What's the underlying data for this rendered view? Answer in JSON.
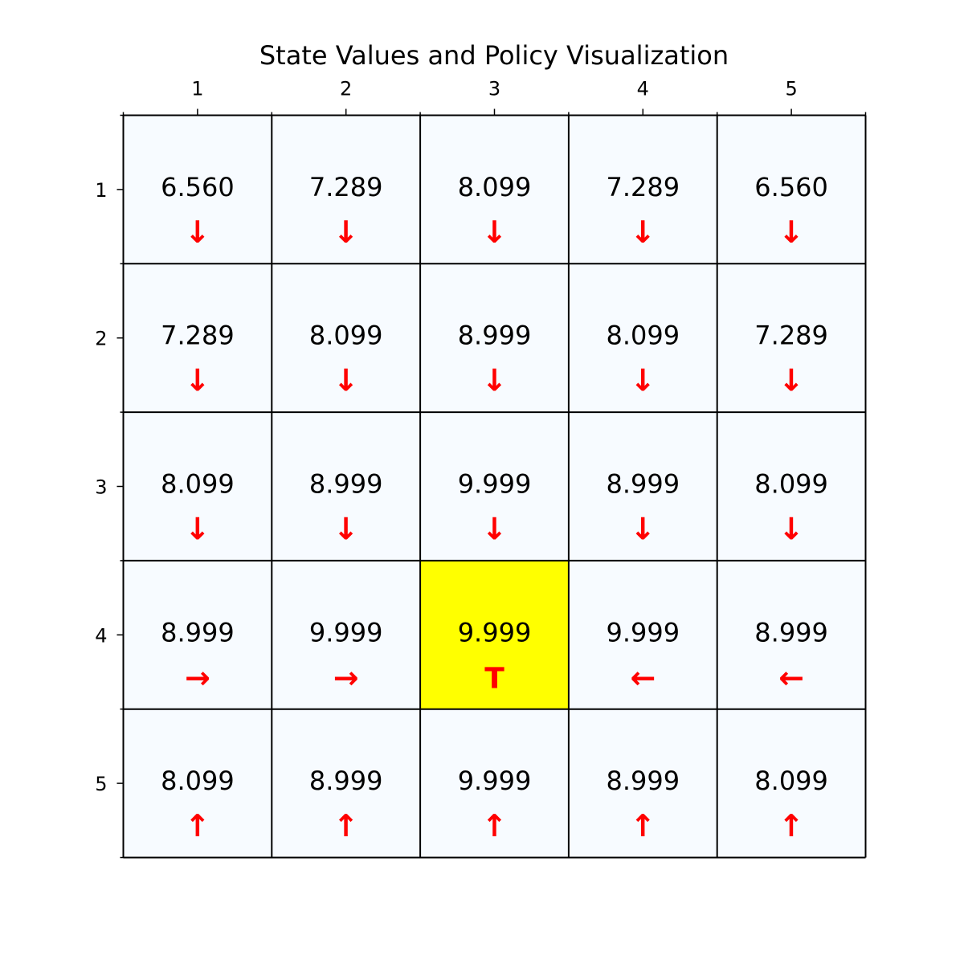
{
  "chart_data": {
    "type": "heatmap",
    "title": "State Values and Policy Visualization",
    "x_tick_labels": [
      "1",
      "2",
      "3",
      "4",
      "5"
    ],
    "y_tick_labels": [
      "1",
      "2",
      "3",
      "4",
      "5"
    ],
    "x_axis_position": "top",
    "grid": true,
    "values": [
      [
        "6.560",
        "7.289",
        "8.099",
        "7.289",
        "6.560"
      ],
      [
        "7.289",
        "8.099",
        "8.999",
        "8.099",
        "7.289"
      ],
      [
        "8.099",
        "8.999",
        "9.999",
        "8.999",
        "8.099"
      ],
      [
        "8.999",
        "9.999",
        "9.999",
        "9.999",
        "8.999"
      ],
      [
        "8.099",
        "8.999",
        "9.999",
        "8.999",
        "8.099"
      ]
    ],
    "policy": [
      [
        "↓",
        "↓",
        "↓",
        "↓",
        "↓"
      ],
      [
        "↓",
        "↓",
        "↓",
        "↓",
        "↓"
      ],
      [
        "↓",
        "↓",
        "↓",
        "↓",
        "↓"
      ],
      [
        "→",
        "→",
        "T",
        "←",
        "←"
      ],
      [
        "↑",
        "↑",
        "↑",
        "↑",
        "↑"
      ]
    ],
    "terminal_cell": {
      "row": 4,
      "col": 3
    },
    "colors": {
      "cell_fill": "#f7fbff",
      "terminal_fill": "#ffff00",
      "arrow": "#ff0000",
      "grid_line": "#000000"
    }
  }
}
